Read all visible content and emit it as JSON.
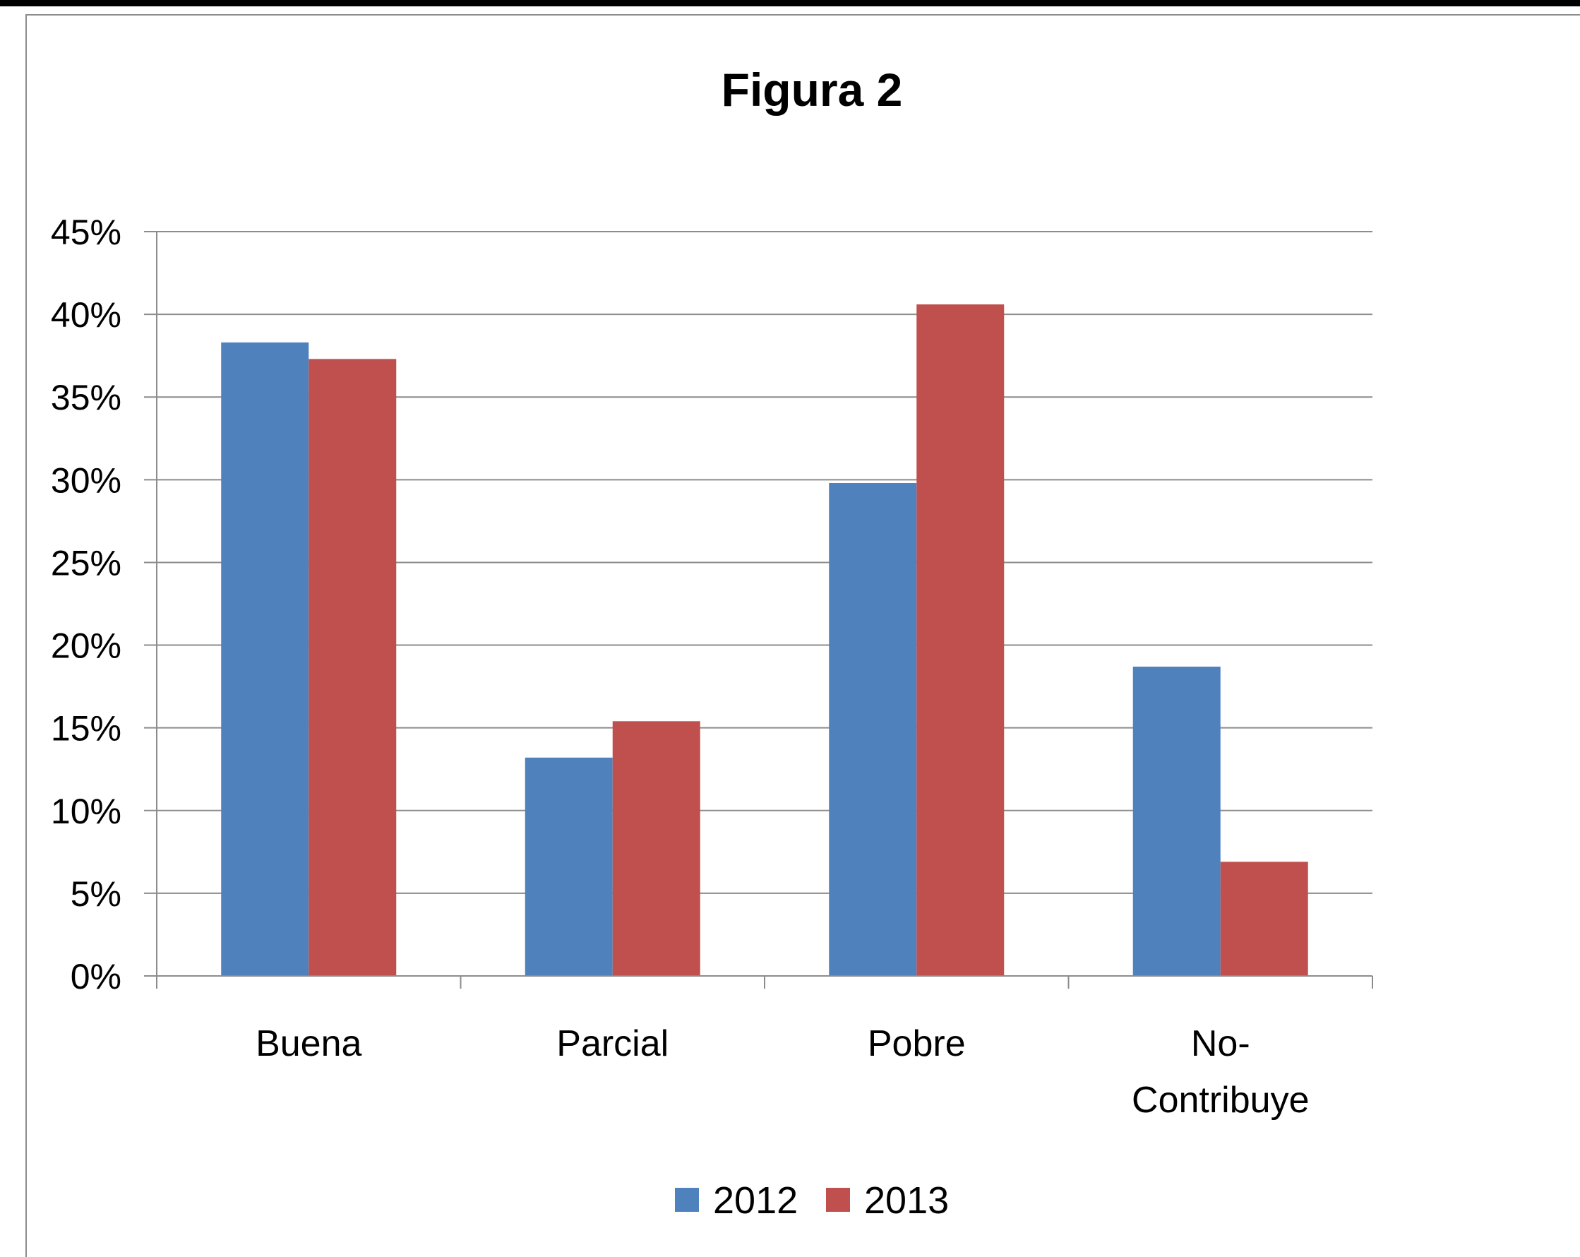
{
  "chart_data": {
    "type": "bar",
    "title": "Figura 2",
    "xlabel": "",
    "ylabel": "",
    "categories": [
      "Buena",
      "Parcial",
      "Pobre",
      "No-Contribuye"
    ],
    "category_lines": [
      [
        "Buena"
      ],
      [
        "Parcial"
      ],
      [
        "Pobre"
      ],
      [
        "No-",
        "Contribuye"
      ]
    ],
    "series": [
      {
        "name": "2012",
        "color": "#4f81bd",
        "values": [
          38.3,
          13.2,
          29.8,
          18.7
        ]
      },
      {
        "name": "2013",
        "color": "#c0504d",
        "values": [
          37.3,
          15.4,
          40.6,
          6.9
        ]
      }
    ],
    "ylim": [
      0,
      45
    ],
    "yticks": [
      0,
      5,
      10,
      15,
      20,
      25,
      30,
      35,
      40,
      45
    ],
    "ytick_labels": [
      "0%",
      "5%",
      "10%",
      "15%",
      "20%",
      "25%",
      "30%",
      "35%",
      "40%",
      "45%"
    ],
    "grid": true,
    "legend": "bottom"
  }
}
